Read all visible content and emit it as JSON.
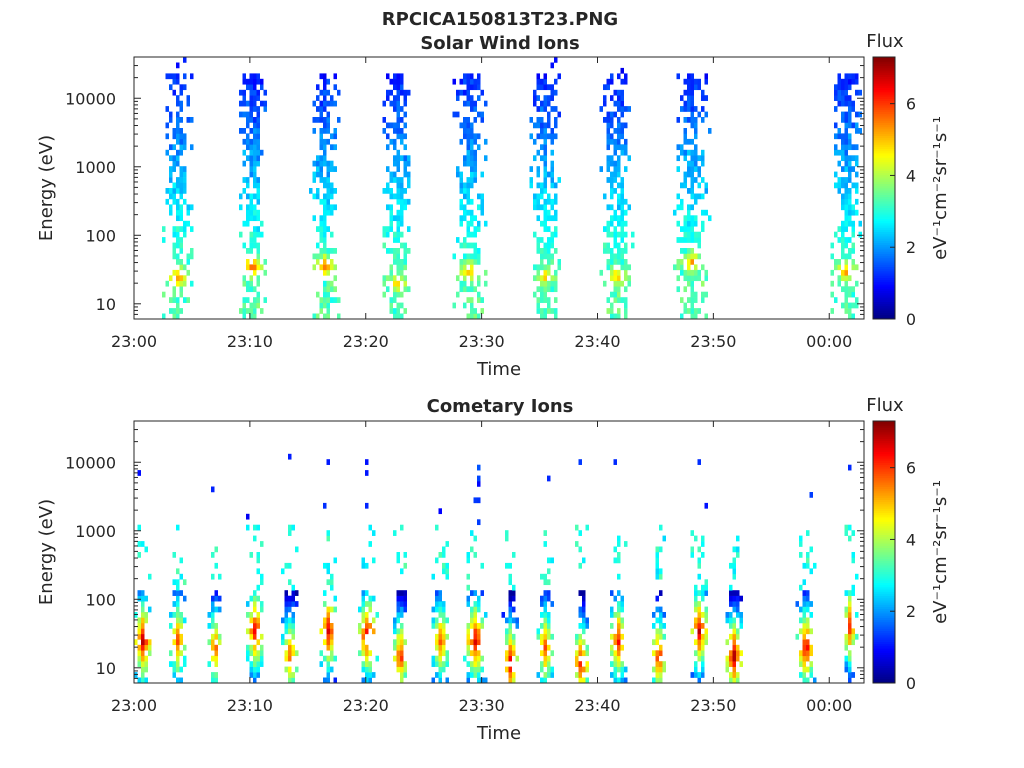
{
  "figure_title": "RPCICA150813T23.PNG",
  "chart_data": [
    {
      "type": "heatmap",
      "title": "Solar Wind Ions",
      "xlabel": "Time",
      "ylabel": "Energy (eV)",
      "x_range": [
        "23:00",
        "00:03"
      ],
      "x_ticks": [
        "23:00",
        "23:10",
        "23:20",
        "23:30",
        "23:40",
        "23:50",
        "00:00"
      ],
      "y_scale": "log",
      "y_range": [
        6,
        40000
      ],
      "y_ticks": [
        "10",
        "100",
        "1000",
        "10000"
      ],
      "colorbar": {
        "title": "Flux",
        "label": "eV⁻¹cm⁻²sr⁻¹s⁻¹",
        "range": [
          0,
          7.3
        ],
        "ticks": [
          "0",
          "2",
          "4",
          "6"
        ],
        "colormap": "jet"
      },
      "bursts": [
        {
          "time_min": 3.8,
          "width_min": 2.6,
          "low_energy_peak_eV": 25,
          "peak_flux": 5.5
        },
        {
          "time_min": 10.2,
          "width_min": 2.6,
          "low_energy_peak_eV": 35,
          "peak_flux": 5.8
        },
        {
          "time_min": 16.5,
          "width_min": 2.6,
          "low_energy_peak_eV": 35,
          "peak_flux": 5.6
        },
        {
          "time_min": 22.7,
          "width_min": 2.8,
          "low_energy_peak_eV": 20,
          "peak_flux": 5.0
        },
        {
          "time_min": 29.0,
          "width_min": 3.0,
          "low_energy_peak_eV": 30,
          "peak_flux": 5.3
        },
        {
          "time_min": 35.5,
          "width_min": 3.0,
          "low_energy_peak_eV": 25,
          "peak_flux": 5.0
        },
        {
          "time_min": 41.7,
          "width_min": 3.0,
          "low_energy_peak_eV": 25,
          "peak_flux": 5.2
        },
        {
          "time_min": 48.2,
          "width_min": 3.2,
          "low_energy_peak_eV": 40,
          "peak_flux": 5.3
        },
        {
          "time_min": 61.5,
          "width_min": 2.8,
          "low_energy_peak_eV": 30,
          "peak_flux": 5.4
        }
      ],
      "data_gap_min": [
        53.0,
        56.0
      ]
    },
    {
      "type": "heatmap",
      "title": "Cometary Ions",
      "xlabel": "Time",
      "ylabel": "Energy (eV)",
      "x_range": [
        "23:00",
        "00:03"
      ],
      "x_ticks": [
        "23:00",
        "23:10",
        "23:20",
        "23:30",
        "23:40",
        "23:50",
        "00:00"
      ],
      "y_scale": "log",
      "y_range": [
        6,
        40000
      ],
      "y_ticks": [
        "10",
        "100",
        "1000",
        "10000"
      ],
      "colorbar": {
        "title": "Flux",
        "label": "eV⁻¹cm⁻²sr⁻¹s⁻¹",
        "range": [
          0,
          7.3
        ],
        "ticks": [
          "0",
          "2",
          "4",
          "6"
        ],
        "colormap": "jet"
      },
      "bursts": [
        {
          "time_min": 0.8,
          "width_min": 1.6,
          "low_energy_peak_eV": 25,
          "peak_flux": 7.0
        },
        {
          "time_min": 3.8,
          "width_min": 1.6,
          "low_energy_peak_eV": 25,
          "peak_flux": 6.0
        },
        {
          "time_min": 7.0,
          "width_min": 1.4,
          "low_energy_peak_eV": 20,
          "peak_flux": 6.0
        },
        {
          "time_min": 10.5,
          "width_min": 1.6,
          "low_energy_peak_eV": 35,
          "peak_flux": 6.8
        },
        {
          "time_min": 13.5,
          "width_min": 1.6,
          "low_energy_peak_eV": 15,
          "peak_flux": 6.0
        },
        {
          "time_min": 16.8,
          "width_min": 1.8,
          "low_energy_peak_eV": 35,
          "peak_flux": 6.8
        },
        {
          "time_min": 20.2,
          "width_min": 1.8,
          "low_energy_peak_eV": 30,
          "peak_flux": 7.0
        },
        {
          "time_min": 23.0,
          "width_min": 1.4,
          "low_energy_peak_eV": 15,
          "peak_flux": 6.5
        },
        {
          "time_min": 26.5,
          "width_min": 1.6,
          "low_energy_peak_eV": 25,
          "peak_flux": 6.0
        },
        {
          "time_min": 29.5,
          "width_min": 2.0,
          "low_energy_peak_eV": 25,
          "peak_flux": 6.8
        },
        {
          "time_min": 32.5,
          "width_min": 1.4,
          "low_energy_peak_eV": 12,
          "peak_flux": 6.8
        },
        {
          "time_min": 35.5,
          "width_min": 1.6,
          "low_energy_peak_eV": 20,
          "peak_flux": 6.0
        },
        {
          "time_min": 38.6,
          "width_min": 1.4,
          "low_energy_peak_eV": 12,
          "peak_flux": 6.8
        },
        {
          "time_min": 41.8,
          "width_min": 1.6,
          "low_energy_peak_eV": 25,
          "peak_flux": 6.5
        },
        {
          "time_min": 45.3,
          "width_min": 1.4,
          "low_energy_peak_eV": 15,
          "peak_flux": 6.5
        },
        {
          "time_min": 48.8,
          "width_min": 1.6,
          "low_energy_peak_eV": 35,
          "peak_flux": 6.8
        },
        {
          "time_min": 51.8,
          "width_min": 1.6,
          "low_energy_peak_eV": 15,
          "peak_flux": 7.0
        },
        {
          "time_min": 58.0,
          "width_min": 1.6,
          "low_energy_peak_eV": 20,
          "peak_flux": 6.8
        },
        {
          "time_min": 61.8,
          "width_min": 1.2,
          "low_energy_peak_eV": 40,
          "peak_flux": 6.5
        }
      ],
      "data_gap_min": [
        53.0,
        56.0
      ]
    }
  ]
}
